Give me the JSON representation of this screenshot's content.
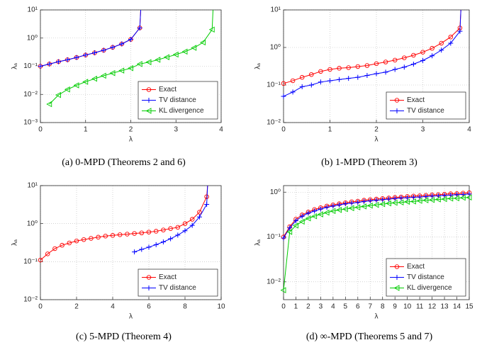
{
  "chart_data": [
    {
      "type": "line",
      "caption": "(a)  0-MPD (Theorems 2 and 6)",
      "xlabel": "λ",
      "ylabel": "λₐ",
      "xlim": [
        0,
        4
      ],
      "xticks": [
        0,
        1,
        2,
        3,
        4
      ],
      "ylim": [
        0.001,
        10
      ],
      "yscale": "log",
      "yticks": [
        {
          "value": 0.001,
          "label": "10⁻³"
        },
        {
          "value": 0.01,
          "label": "10⁻²"
        },
        {
          "value": 0.1,
          "label": "10⁻¹"
        },
        {
          "value": 1,
          "label": "10⁰"
        },
        {
          "value": 10,
          "label": "10¹"
        }
      ],
      "grid": true,
      "legend": "lower right",
      "series": [
        {
          "name": "Exact",
          "color": "#ff0000",
          "marker": "o",
          "asymptote": 2.22,
          "x": [
            0,
            0.2,
            0.4,
            0.6,
            0.8,
            1,
            1.2,
            1.4,
            1.6,
            1.8,
            2,
            2.2
          ],
          "values": [
            0.1,
            0.12,
            0.145,
            0.17,
            0.205,
            0.25,
            0.3,
            0.37,
            0.47,
            0.62,
            0.9,
            2.3
          ]
        },
        {
          "name": "TV distance",
          "color": "#0000ff",
          "marker": "+",
          "asymptote": 2.22,
          "x": [
            0,
            0.2,
            0.4,
            0.6,
            0.8,
            1,
            1.2,
            1.4,
            1.6,
            1.8,
            2,
            2.2
          ],
          "values": [
            0.1,
            0.12,
            0.145,
            0.17,
            0.205,
            0.25,
            0.3,
            0.37,
            0.47,
            0.62,
            0.9,
            2.3
          ]
        },
        {
          "name": "KL divergence",
          "color": "#00cc00",
          "marker": "<",
          "asymptote": 3.82,
          "x": [
            0.2,
            0.4,
            0.6,
            0.8,
            1,
            1.2,
            1.4,
            1.6,
            1.8,
            2,
            2.2,
            2.4,
            2.6,
            2.8,
            3,
            3.2,
            3.4,
            3.6,
            3.8
          ],
          "values": [
            0.0045,
            0.0095,
            0.015,
            0.021,
            0.028,
            0.036,
            0.046,
            0.057,
            0.07,
            0.085,
            0.12,
            0.14,
            0.17,
            0.21,
            0.26,
            0.33,
            0.45,
            0.7,
            2.0
          ]
        }
      ]
    },
    {
      "type": "line",
      "caption": "(b)  1-MPD (Theorem 3)",
      "xlabel": "λ",
      "ylabel": "λₐ",
      "xlim": [
        0,
        4
      ],
      "xticks": [
        0,
        1,
        2,
        3,
        4
      ],
      "ylim": [
        0.01,
        10
      ],
      "yscale": "log",
      "yticks": [
        {
          "value": 0.01,
          "label": "10⁻²"
        },
        {
          "value": 0.1,
          "label": "10⁻¹"
        },
        {
          "value": 1,
          "label": "10⁰"
        },
        {
          "value": 10,
          "label": "10¹"
        }
      ],
      "grid": true,
      "legend": "lower right",
      "series": [
        {
          "name": "Exact",
          "color": "#ff0000",
          "marker": "o",
          "asymptote": 3.82,
          "x": [
            0,
            0.2,
            0.4,
            0.6,
            0.8,
            1,
            1.2,
            1.4,
            1.6,
            1.8,
            2,
            2.2,
            2.4,
            2.6,
            2.8,
            3,
            3.2,
            3.4,
            3.6,
            3.8
          ],
          "values": [
            0.11,
            0.13,
            0.16,
            0.19,
            0.23,
            0.26,
            0.28,
            0.29,
            0.31,
            0.33,
            0.37,
            0.41,
            0.46,
            0.53,
            0.62,
            0.75,
            0.95,
            1.3,
            1.9,
            3.3
          ]
        },
        {
          "name": "TV distance",
          "color": "#0000ff",
          "marker": "+",
          "asymptote": 3.82,
          "x": [
            0,
            0.2,
            0.4,
            0.6,
            0.8,
            1,
            1.2,
            1.4,
            1.6,
            1.8,
            2,
            2.2,
            2.4,
            2.6,
            2.8,
            3,
            3.2,
            3.4,
            3.6,
            3.8
          ],
          "values": [
            0.05,
            0.065,
            0.09,
            0.1,
            0.12,
            0.13,
            0.14,
            0.15,
            0.16,
            0.18,
            0.2,
            0.22,
            0.26,
            0.3,
            0.36,
            0.45,
            0.6,
            0.85,
            1.3,
            2.7
          ]
        }
      ]
    },
    {
      "type": "line",
      "caption": "(c)  5-MPD (Theorem 4)",
      "xlabel": "λ",
      "ylabel": "λₐ",
      "xlim": [
        0,
        10
      ],
      "xticks": [
        0,
        2,
        4,
        6,
        8,
        10
      ],
      "ylim": [
        0.01,
        10
      ],
      "yscale": "log",
      "yticks": [
        {
          "value": 0.01,
          "label": "10⁻²"
        },
        {
          "value": 0.1,
          "label": "10⁻¹"
        },
        {
          "value": 1,
          "label": "10⁰"
        },
        {
          "value": 10,
          "label": "10¹"
        }
      ],
      "grid": true,
      "legend": "lower right",
      "series": [
        {
          "name": "Exact",
          "color": "#ff0000",
          "marker": "o",
          "asymptote": 9.25,
          "x": [
            0,
            0.4,
            0.8,
            1.2,
            1.6,
            2,
            2.4,
            2.8,
            3.2,
            3.6,
            4,
            4.4,
            4.8,
            5.2,
            5.6,
            6,
            6.4,
            6.8,
            7.2,
            7.6,
            8,
            8.4,
            8.8,
            9.2
          ],
          "values": [
            0.11,
            0.16,
            0.22,
            0.27,
            0.31,
            0.35,
            0.38,
            0.41,
            0.44,
            0.47,
            0.49,
            0.51,
            0.53,
            0.55,
            0.57,
            0.6,
            0.63,
            0.68,
            0.74,
            0.8,
            1.0,
            1.3,
            2.0,
            5.1
          ]
        },
        {
          "name": "TV distance",
          "color": "#0000ff",
          "marker": "+",
          "asymptote": 9.25,
          "x": [
            5.2,
            5.6,
            6,
            6.4,
            6.8,
            7.2,
            7.6,
            8,
            8.4,
            8.8,
            9.2
          ],
          "values": [
            0.18,
            0.21,
            0.24,
            0.28,
            0.33,
            0.4,
            0.5,
            0.65,
            0.9,
            1.5,
            3.2
          ]
        }
      ]
    },
    {
      "type": "line",
      "caption": "(d)  ∞-MPD (Theorems 5 and 7)",
      "xlabel": "λ",
      "ylabel": "λₐ",
      "xlim": [
        0,
        15
      ],
      "xticks": [
        0,
        1,
        2,
        3,
        4,
        5,
        6,
        7,
        8,
        9,
        10,
        11,
        12,
        13,
        14,
        15
      ],
      "ylim": [
        0.004,
        1.4
      ],
      "yscale": "log",
      "yticks": [
        {
          "value": 0.01,
          "label": "10⁻²"
        },
        {
          "value": 0.1,
          "label": "10⁻¹"
        },
        {
          "value": 1,
          "label": "10⁰"
        }
      ],
      "grid": true,
      "legend": "lower right",
      "series": [
        {
          "name": "Exact",
          "color": "#ff0000",
          "marker": "o",
          "x": [
            0,
            0.5,
            1,
            1.5,
            2,
            2.5,
            3,
            3.5,
            4,
            4.5,
            5,
            5.5,
            6,
            6.5,
            7,
            7.5,
            8,
            8.5,
            9,
            9.5,
            10,
            10.5,
            11,
            11.5,
            12,
            12.5,
            13,
            13.5,
            14,
            14.5,
            15
          ],
          "values": [
            0.1,
            0.17,
            0.25,
            0.31,
            0.36,
            0.41,
            0.45,
            0.49,
            0.52,
            0.55,
            0.58,
            0.61,
            0.63,
            0.66,
            0.68,
            0.7,
            0.72,
            0.74,
            0.76,
            0.78,
            0.8,
            0.82,
            0.83,
            0.85,
            0.87,
            0.88,
            0.9,
            0.92,
            0.93,
            0.95,
            0.97
          ]
        },
        {
          "name": "TV distance",
          "color": "#0000ff",
          "marker": "+",
          "x": [
            0,
            0.5,
            1,
            1.5,
            2,
            2.5,
            3,
            3.5,
            4,
            4.5,
            5,
            5.5,
            6,
            6.5,
            7,
            7.5,
            8,
            8.5,
            9,
            9.5,
            10,
            10.5,
            11,
            11.5,
            12,
            12.5,
            13,
            13.5,
            14,
            14.5,
            15
          ],
          "values": [
            0.095,
            0.16,
            0.23,
            0.29,
            0.34,
            0.38,
            0.42,
            0.46,
            0.49,
            0.52,
            0.55,
            0.57,
            0.59,
            0.62,
            0.64,
            0.66,
            0.68,
            0.7,
            0.72,
            0.74,
            0.75,
            0.77,
            0.78,
            0.8,
            0.82,
            0.83,
            0.85,
            0.86,
            0.88,
            0.89,
            0.91
          ]
        },
        {
          "name": "KL divergence",
          "color": "#00cc00",
          "marker": "<",
          "x": [
            0,
            0.5,
            1,
            1.5,
            2,
            2.5,
            3,
            3.5,
            4,
            4.5,
            5,
            5.5,
            6,
            6.5,
            7,
            7.5,
            8,
            8.5,
            9,
            9.5,
            10,
            10.5,
            11,
            11.5,
            12,
            12.5,
            13,
            13.5,
            14,
            14.5,
            15
          ],
          "values": [
            0.0065,
            0.13,
            0.18,
            0.22,
            0.26,
            0.29,
            0.32,
            0.35,
            0.38,
            0.4,
            0.42,
            0.44,
            0.46,
            0.48,
            0.5,
            0.52,
            0.54,
            0.56,
            0.58,
            0.59,
            0.61,
            0.62,
            0.64,
            0.66,
            0.67,
            0.69,
            0.7,
            0.72,
            0.73,
            0.75,
            0.76
          ]
        }
      ]
    }
  ]
}
